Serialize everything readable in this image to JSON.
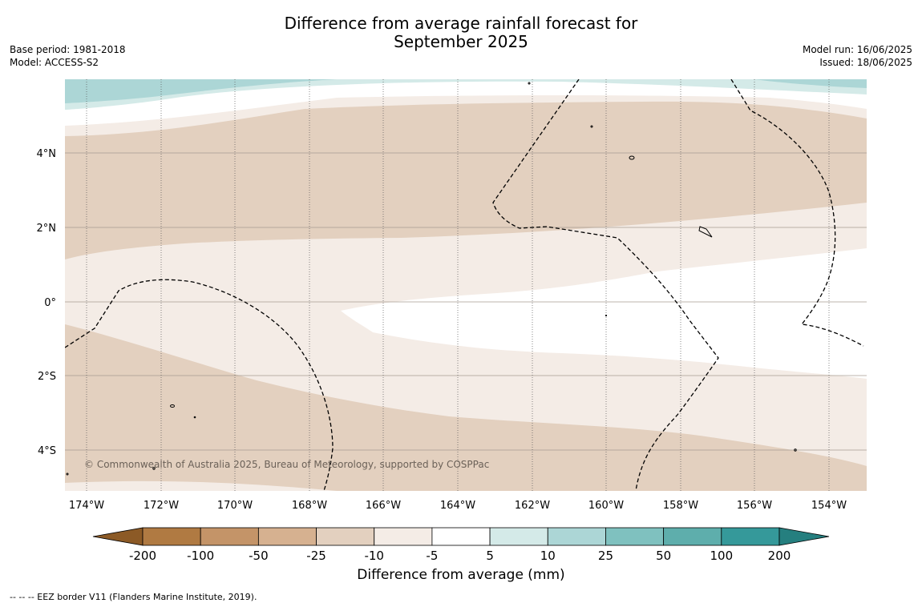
{
  "title_line1": "Difference from average rainfall forecast for",
  "title_line2": "September 2025",
  "base_period": "Base period: 1981-2018",
  "model": "Model: ACCESS-S2",
  "model_run": "Model run: 16/06/2025",
  "issued": "Issued: 18/06/2025",
  "copyright": "© Commonwealth of Australia 2025, Bureau of Meteorology, supported by COSPPac",
  "lat_labels": [
    "4°N",
    "2°N",
    "0°",
    "2°S",
    "4°S"
  ],
  "lon_labels": [
    "174°W",
    "172°W",
    "170°W",
    "168°W",
    "166°W",
    "164°W",
    "162°W",
    "160°W",
    "158°W",
    "156°W",
    "154°W"
  ],
  "colorbar": {
    "title": "Difference from average (mm)",
    "ticks": [
      "-200",
      "-100",
      "-50",
      "-25",
      "-10",
      "-5",
      "5",
      "10",
      "25",
      "50",
      "100",
      "200"
    ],
    "colors": [
      "#8c5a26",
      "#b07a42",
      "#c49468",
      "#d6b190",
      "#e3d0bf",
      "#f4ece6",
      "#ffffff",
      "#d4eae8",
      "#acd6d6",
      "#7fc1bf",
      "#5eaeac",
      "#35999a",
      "#257f7f"
    ]
  },
  "footer": "--  --  -- EEZ border V11 (Flanders Marine Institute, 2019)."
}
